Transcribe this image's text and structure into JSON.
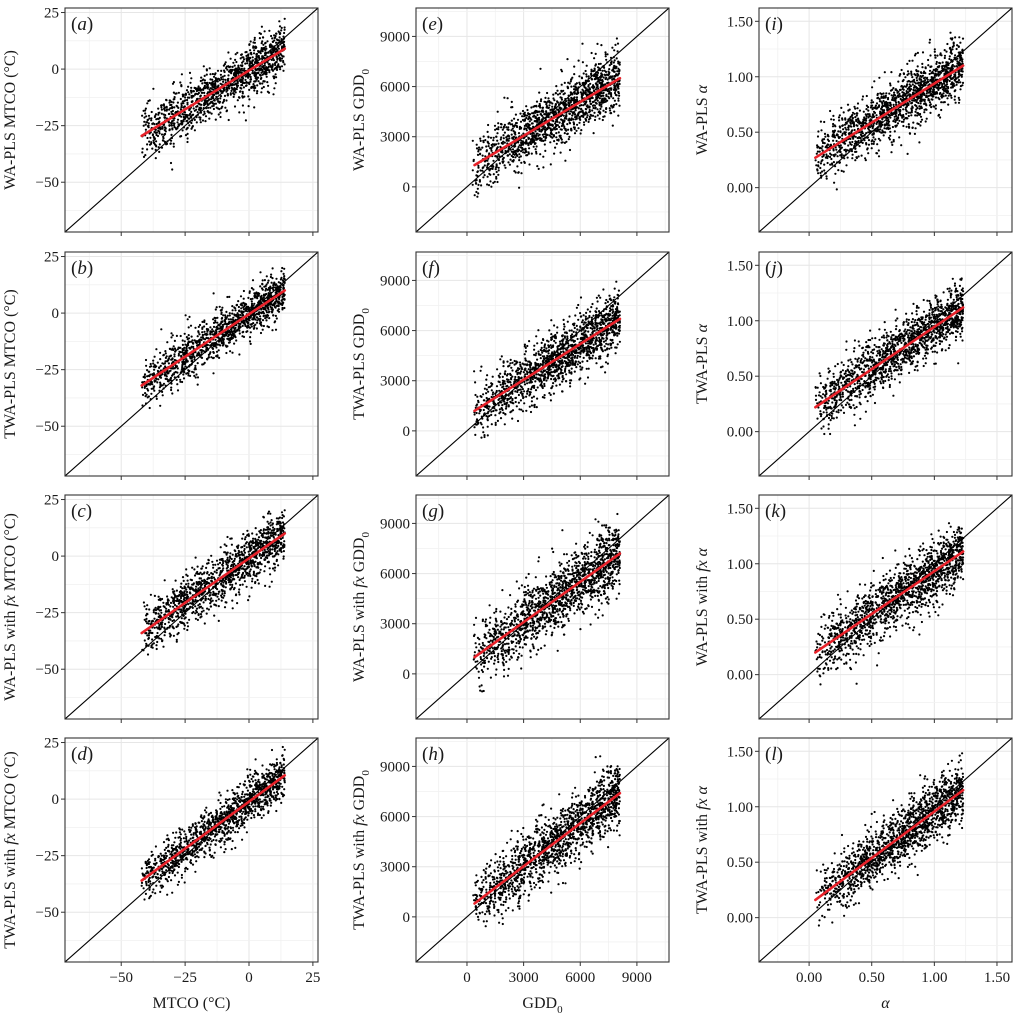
{
  "chart_data": {
    "type": "scatter",
    "layout": "4x3 grid of panels",
    "columns": [
      {
        "variable": "MTCO",
        "xlabel": "MTCO (°C)",
        "xlim": [
          -72,
          27
        ],
        "ylim": [
          -72,
          27
        ],
        "xticks": [
          -50,
          -25,
          0,
          25
        ],
        "xtick_labels": [
          "−50",
          "−25",
          "0",
          "25"
        ],
        "yticks": [
          -50,
          -25,
          0,
          25
        ],
        "ytick_labels": [
          "−50",
          "−25",
          "0",
          "25"
        ],
        "minor_step": 12.5,
        "obs_range": [
          -42,
          14
        ]
      },
      {
        "variable": "GDD0",
        "xlabel": "GDD",
        "xlabel_sub": "0",
        "xlim": [
          -2700,
          10700
        ],
        "ylim": [
          -2700,
          10700
        ],
        "xticks": [
          0,
          3000,
          6000,
          9000
        ],
        "xtick_labels": [
          "0",
          "3000",
          "6000",
          "9000"
        ],
        "yticks": [
          0,
          3000,
          6000,
          9000
        ],
        "ytick_labels": [
          "0",
          "3000",
          "6000",
          "9000"
        ],
        "minor_step": 1500,
        "obs_range": [
          300,
          8100
        ]
      },
      {
        "variable": "alpha",
        "xlabel": "α",
        "xlim": [
          -0.4,
          1.62
        ],
        "ylim": [
          -0.4,
          1.62
        ],
        "xticks": [
          0,
          0.5,
          1.0,
          1.5
        ],
        "xtick_labels": [
          "0.00",
          "0.50",
          "1.00",
          "1.50"
        ],
        "yticks": [
          0,
          0.5,
          1.0,
          1.5
        ],
        "ytick_labels": [
          "0.00",
          "0.50",
          "1.00",
          "1.50"
        ],
        "minor_step": 0.25,
        "obs_range": [
          0.05,
          1.23
        ]
      }
    ],
    "panels": [
      {
        "tag": "a",
        "col": 0,
        "row": 0,
        "ylabel": "WA-PLS MTCO (°C)",
        "fit": {
          "x0": -42,
          "y0": -29.5,
          "x1": 14,
          "y1": 9
        },
        "spread": 5.5,
        "n_points": 1300
      },
      {
        "tag": "b",
        "col": 0,
        "row": 1,
        "ylabel": "TWA-PLS MTCO (°C)",
        "fit": {
          "x0": -42,
          "y0": -32,
          "x1": 14,
          "y1": 10
        },
        "spread": 5,
        "n_points": 1300
      },
      {
        "tag": "c",
        "col": 0,
        "row": 2,
        "ylabel": "WA-PLS with fx MTCO (°C)",
        "fit": {
          "x0": -42,
          "y0": -34,
          "x1": 14,
          "y1": 10
        },
        "spread": 5.5,
        "n_points": 1300
      },
      {
        "tag": "d",
        "col": 0,
        "row": 3,
        "ylabel": "TWA-PLS with fx MTCO (°C)",
        "fit": {
          "x0": -42,
          "y0": -36,
          "x1": 14,
          "y1": 10.5
        },
        "spread": 5,
        "n_points": 1300
      },
      {
        "tag": "e",
        "col": 1,
        "row": 0,
        "ylabel": "WA-PLS GDD",
        "ylabel_sub": "0",
        "fit": {
          "x0": 400,
          "y0": 1300,
          "x1": 8100,
          "y1": 6500
        },
        "spread": 900,
        "n_points": 1500
      },
      {
        "tag": "f",
        "col": 1,
        "row": 1,
        "ylabel": "TWA-PLS GDD",
        "ylabel_sub": "0",
        "fit": {
          "x0": 400,
          "y0": 1200,
          "x1": 8100,
          "y1": 6700
        },
        "spread": 850,
        "n_points": 1500
      },
      {
        "tag": "g",
        "col": 1,
        "row": 2,
        "ylabel": "WA-PLS with fx GDD",
        "ylabel_sub": "0",
        "fit": {
          "x0": 400,
          "y0": 1000,
          "x1": 8100,
          "y1": 7200
        },
        "spread": 1000,
        "n_points": 1500
      },
      {
        "tag": "h",
        "col": 1,
        "row": 3,
        "ylabel": "TWA-PLS with fx GDD",
        "ylabel_sub": "0",
        "fit": {
          "x0": 400,
          "y0": 800,
          "x1": 8100,
          "y1": 7400
        },
        "spread": 950,
        "n_points": 1500
      },
      {
        "tag": "i",
        "col": 2,
        "row": 0,
        "ylabel": "WA-PLS α",
        "fit": {
          "x0": 0.05,
          "y0": 0.27,
          "x1": 1.23,
          "y1": 1.1
        },
        "spread": 0.13,
        "n_points": 1500
      },
      {
        "tag": "j",
        "col": 2,
        "row": 1,
        "ylabel": "TWA-PLS α",
        "fit": {
          "x0": 0.05,
          "y0": 0.22,
          "x1": 1.23,
          "y1": 1.12
        },
        "spread": 0.13,
        "n_points": 1500
      },
      {
        "tag": "k",
        "col": 2,
        "row": 2,
        "ylabel": "WA-PLS with fx α",
        "fit": {
          "x0": 0.05,
          "y0": 0.2,
          "x1": 1.23,
          "y1": 1.11
        },
        "spread": 0.14,
        "n_points": 1500
      },
      {
        "tag": "l",
        "col": 2,
        "row": 3,
        "ylabel": "TWA-PLS with fx α",
        "fit": {
          "x0": 0.05,
          "y0": 0.16,
          "x1": 1.23,
          "y1": 1.15
        },
        "spread": 0.13,
        "n_points": 1500
      }
    ],
    "reference_line": "1:1 (black)",
    "fit_line_color": "#e8222a",
    "point_color": "#000000",
    "grid": true
  }
}
